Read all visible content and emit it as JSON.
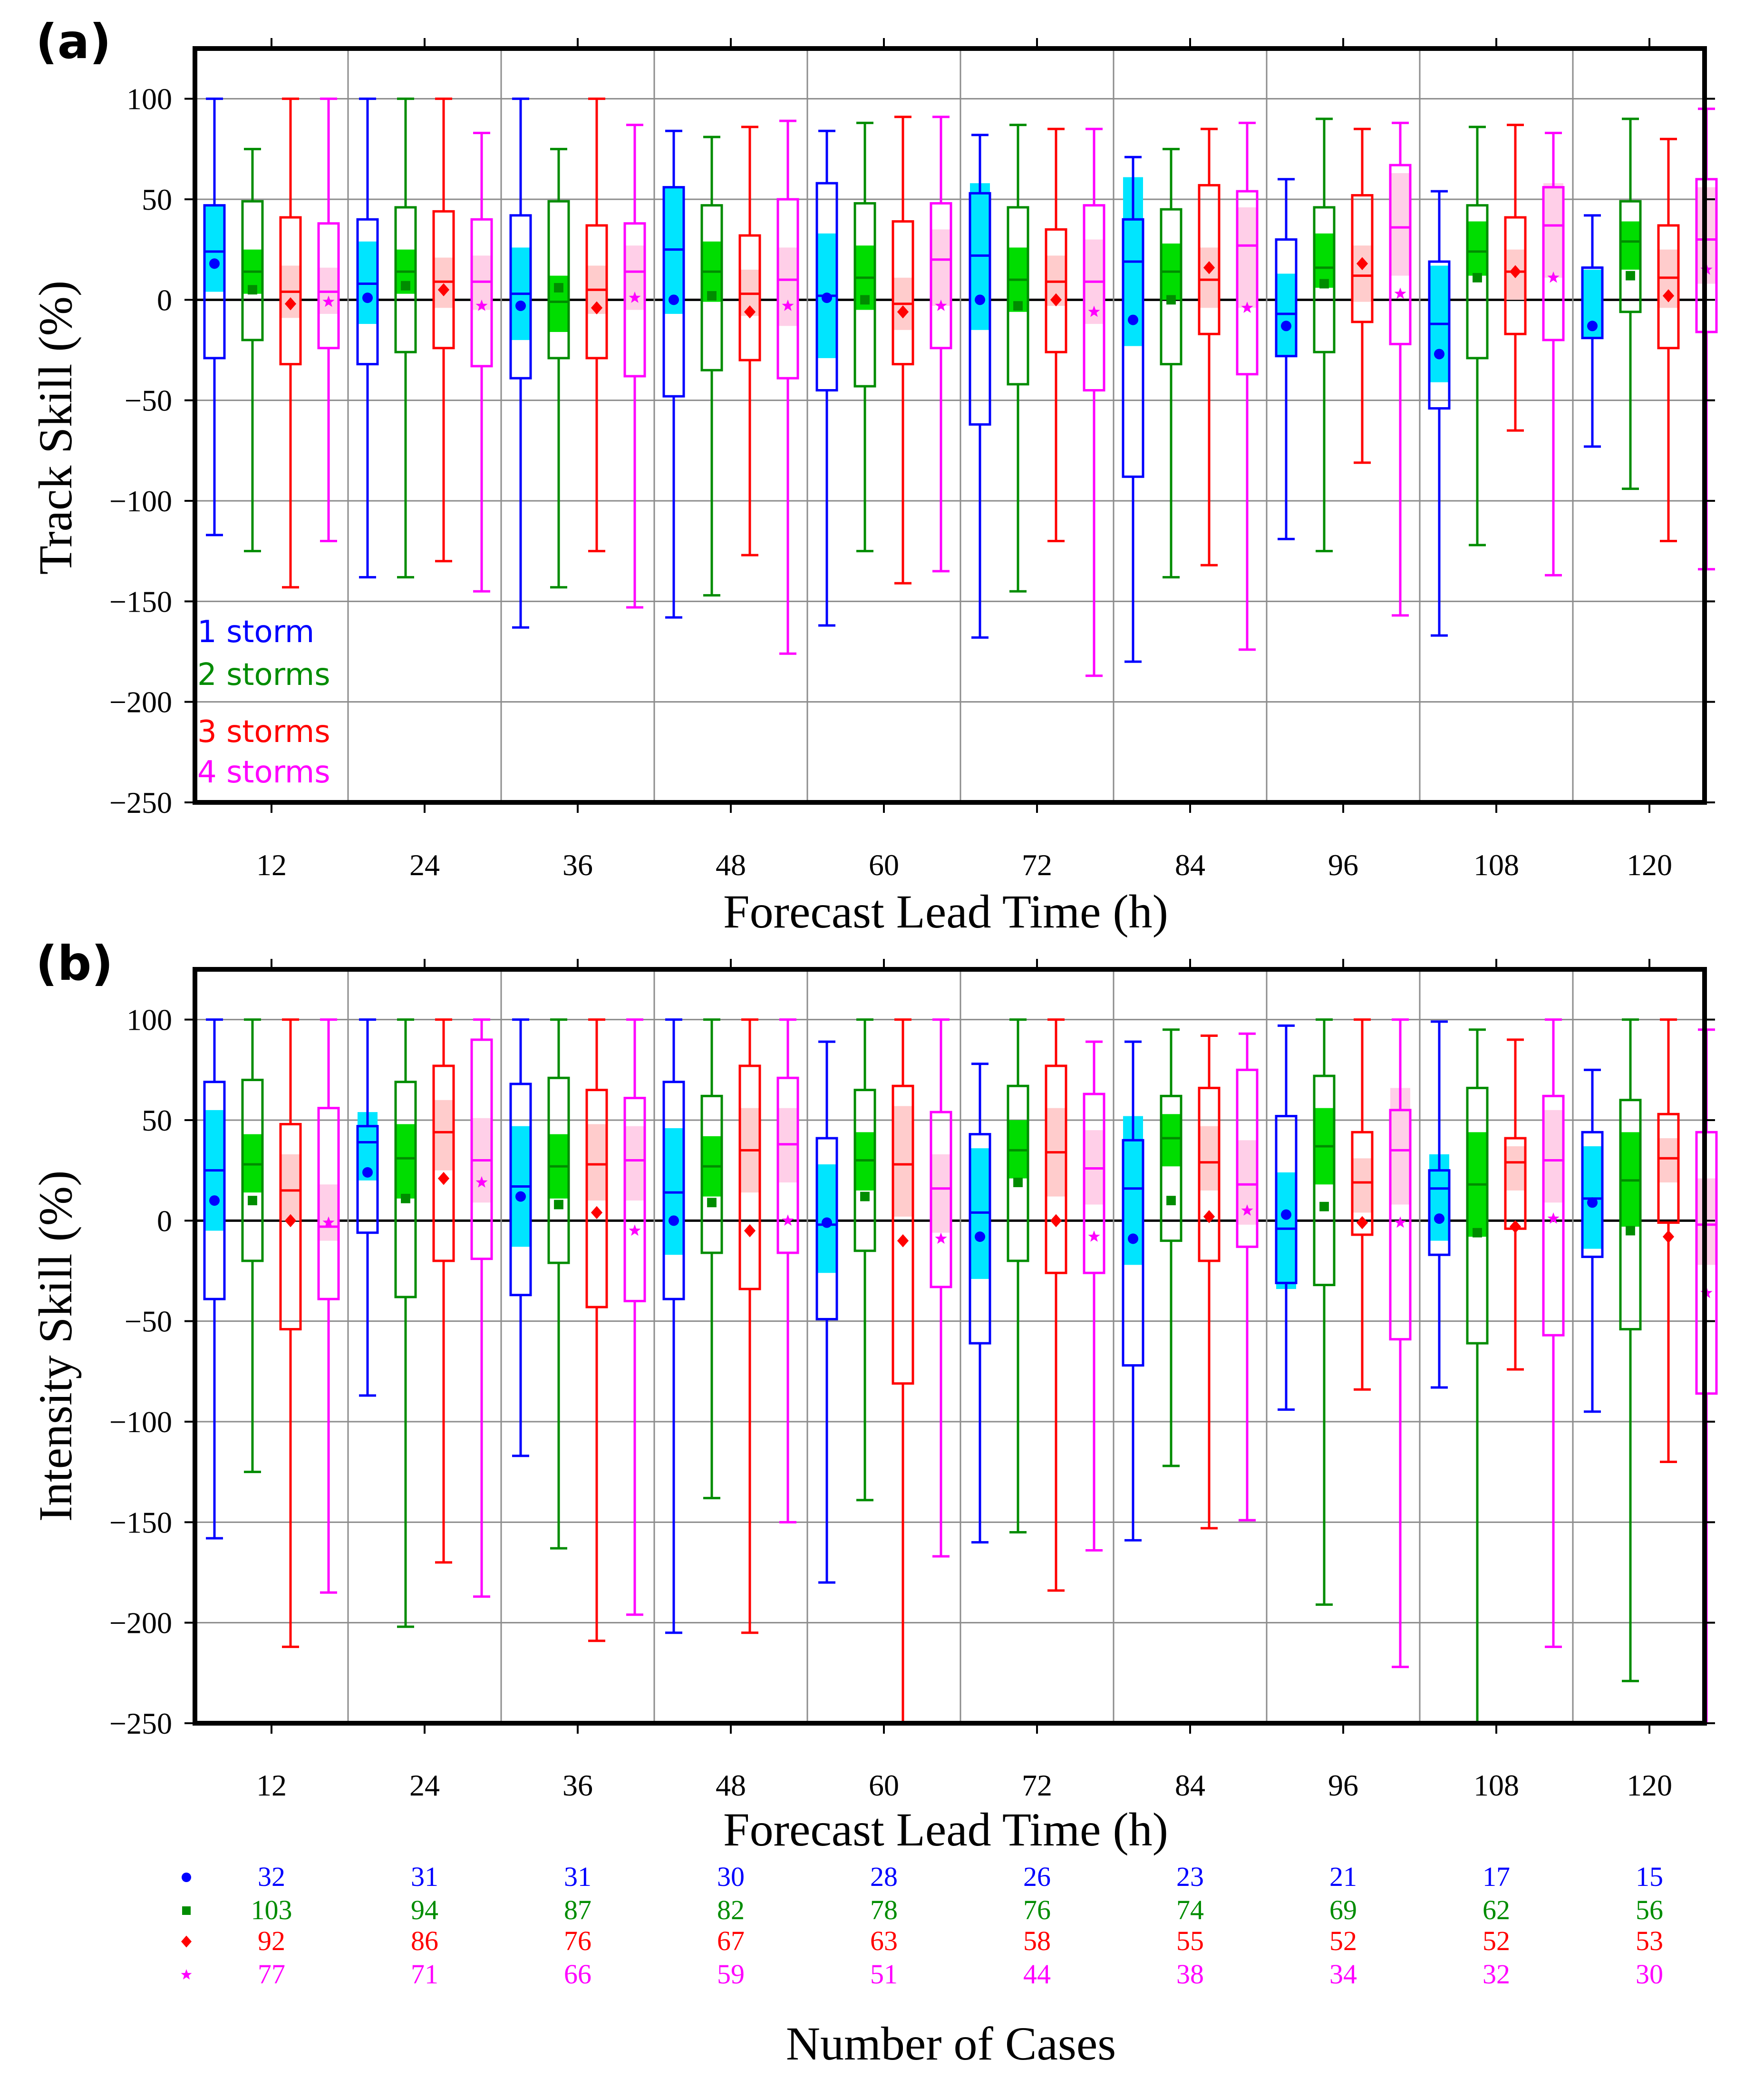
{
  "colors": {
    "1": "#0000ff",
    "2": "#008c00",
    "3": "#ff0000",
    "4": "#ff00ff"
  },
  "fill_colors": {
    "1": "#00e5ff",
    "2": "#00dd00",
    "3": "#ffcccc",
    "4": "#ffcfe8"
  },
  "chart_data": [
    {
      "type": "boxplot",
      "panel_label": "(a)",
      "title": "",
      "xlabel": "Forecast Lead Time (h)",
      "ylabel": "Track Skill (%)",
      "ylim": [
        -250,
        125
      ],
      "yticks": [
        100,
        50,
        0,
        -50,
        -100,
        -150,
        -200,
        -250
      ],
      "ytick_labels": [
        "100",
        "50",
        "0",
        "−50",
        "−100",
        "−150",
        "−200",
        "−250"
      ],
      "categories": [
        "12",
        "24",
        "36",
        "48",
        "60",
        "72",
        "84",
        "96",
        "108",
        "120"
      ],
      "grid": true,
      "legend": {
        "placement": "bottom-left",
        "entries": [
          "1 storm",
          "2 storms",
          "3 storms",
          "4 storms"
        ]
      },
      "series": [
        {
          "name": "1 storm",
          "marker": "circle",
          "max": [
            100,
            100,
            100,
            84,
            84,
            82,
            71,
            60,
            54,
            42
          ],
          "min": [
            -117,
            -138,
            -163,
            -158,
            -162,
            -168,
            -180,
            -119,
            -167,
            -73
          ],
          "q1": [
            -29,
            -32,
            -39,
            -48,
            -45,
            -62,
            -88,
            -28,
            -54,
            -19
          ],
          "q3": [
            47,
            40,
            42,
            56,
            58,
            53,
            40,
            30,
            19,
            16
          ],
          "median": [
            24,
            8,
            3,
            25,
            2,
            22,
            19,
            -7,
            -12,
            16
          ],
          "mean": [
            18,
            1,
            -3,
            0,
            1,
            0,
            -10,
            -13,
            -27,
            -13
          ],
          "ci": [
            [
              4,
              47
            ],
            [
              -12,
              29
            ],
            [
              -20,
              26
            ],
            [
              -7,
              56
            ],
            [
              -29,
              33
            ],
            [
              -15,
              58
            ],
            [
              -23,
              61
            ],
            [
              -28,
              13
            ],
            [
              -41,
              17
            ],
            [
              -19,
              15
            ]
          ]
        },
        {
          "name": "2 storms",
          "marker": "square",
          "max": [
            75,
            100,
            75,
            81,
            88,
            87,
            75,
            90,
            86,
            90
          ],
          "min": [
            -125,
            -138,
            -143,
            -147,
            -125,
            -145,
            -138,
            -125,
            -122,
            -94
          ],
          "q1": [
            -20,
            -26,
            -29,
            -35,
            -43,
            -42,
            -32,
            -26,
            -29,
            -6
          ],
          "q3": [
            49,
            46,
            49,
            47,
            48,
            46,
            45,
            46,
            47,
            49
          ],
          "median": [
            14,
            14,
            -1,
            14,
            11,
            10,
            14,
            16,
            24,
            29
          ],
          "mean": [
            5,
            7,
            6,
            2,
            0,
            -3,
            0,
            8,
            11,
            12
          ],
          "ci": [
            [
              3,
              25
            ],
            [
              3,
              25
            ],
            [
              -16,
              12
            ],
            [
              -1,
              29
            ],
            [
              -5,
              27
            ],
            [
              -6,
              26
            ],
            [
              0,
              28
            ],
            [
              6,
              33
            ],
            [
              12,
              39
            ],
            [
              15,
              39
            ]
          ]
        },
        {
          "name": "3 storms",
          "marker": "diamond",
          "max": [
            100,
            100,
            100,
            86,
            91,
            85,
            85,
            85,
            87,
            80
          ],
          "min": [
            -143,
            -130,
            -125,
            -127,
            -141,
            -120,
            -132,
            -81,
            -65,
            -120
          ],
          "q1": [
            -32,
            -24,
            -29,
            -30,
            -32,
            -26,
            -17,
            -11,
            -17,
            -24
          ],
          "q3": [
            41,
            44,
            37,
            32,
            39,
            35,
            57,
            52,
            41,
            37
          ],
          "median": [
            4,
            9,
            5,
            3,
            -2,
            9,
            10,
            12,
            14,
            11
          ],
          "mean": [
            -2,
            5,
            -4,
            -6,
            -6,
            0,
            16,
            18,
            14,
            2
          ],
          "ci": [
            [
              -9,
              17
            ],
            [
              -4,
              21
            ],
            [
              -7,
              17
            ],
            [
              -8,
              15
            ],
            [
              -15,
              11
            ],
            [
              -3,
              22
            ],
            [
              -4,
              26
            ],
            [
              -1,
              27
            ],
            [
              0,
              25
            ],
            [
              -4,
              25
            ]
          ]
        },
        {
          "name": "4 storms",
          "marker": "star",
          "max": [
            100,
            83,
            87,
            89,
            91,
            85,
            88,
            88,
            83,
            95
          ],
          "min": [
            -120,
            -145,
            -153,
            -176,
            -135,
            -187,
            -174,
            -157,
            -137,
            -134
          ],
          "q1": [
            -24,
            -33,
            -38,
            -39,
            -24,
            -45,
            -37,
            -22,
            -20,
            -16
          ],
          "q3": [
            38,
            40,
            38,
            50,
            48,
            47,
            54,
            67,
            56,
            60
          ],
          "median": [
            4,
            9,
            14,
            10,
            20,
            9,
            27,
            36,
            37,
            30
          ],
          "mean": [
            -1,
            -3,
            1,
            -3,
            -3,
            -6,
            -4,
            3,
            11,
            15
          ],
          "ci": [
            [
              -7,
              16
            ],
            [
              -5,
              22
            ],
            [
              -5,
              27
            ],
            [
              -13,
              26
            ],
            [
              -3,
              35
            ],
            [
              -12,
              30
            ],
            [
              -4,
              46
            ],
            [
              12,
              63
            ],
            [
              11,
              58
            ],
            [
              8,
              56
            ]
          ]
        }
      ]
    },
    {
      "type": "boxplot",
      "panel_label": "(b)",
      "title": "",
      "xlabel": "Forecast Lead Time (h)",
      "ylabel": "Intensity Skill (%)",
      "ylim": [
        -250,
        125
      ],
      "yticks": [
        100,
        50,
        0,
        -50,
        -100,
        -150,
        -200,
        -250
      ],
      "ytick_labels": [
        "100",
        "50",
        "0",
        "−50",
        "−100",
        "−150",
        "−200",
        "−250"
      ],
      "categories": [
        "12",
        "24",
        "36",
        "48",
        "60",
        "72",
        "84",
        "96",
        "108",
        "120"
      ],
      "grid": true,
      "series": [
        {
          "name": "1 storm",
          "marker": "circle",
          "max": [
            100,
            100,
            100,
            100,
            89,
            78,
            89,
            97,
            99,
            75
          ],
          "min": [
            -158,
            -87,
            -117,
            -205,
            -180,
            -160,
            -159,
            -94,
            -83,
            -95
          ],
          "q1": [
            -39,
            -6,
            -37,
            -39,
            -49,
            -61,
            -72,
            -31,
            -17,
            -18
          ],
          "q3": [
            69,
            47,
            68,
            69,
            41,
            43,
            40,
            52,
            25,
            44
          ],
          "median": [
            25,
            39,
            17,
            14,
            -2,
            4,
            16,
            -4,
            16,
            11
          ],
          "mean": [
            10,
            24,
            12,
            0,
            -1,
            -8,
            -9,
            3,
            1,
            9
          ],
          "ci": [
            [
              -5,
              55
            ],
            [
              20,
              54
            ],
            [
              -13,
              47
            ],
            [
              -17,
              46
            ],
            [
              -26,
              28
            ],
            [
              -29,
              36
            ],
            [
              -22,
              52
            ],
            [
              -34,
              24
            ],
            [
              -10,
              33
            ],
            [
              -14,
              37
            ]
          ]
        },
        {
          "name": "2 storms",
          "marker": "square",
          "max": [
            100,
            100,
            100,
            100,
            100,
            100,
            95,
            100,
            95,
            100
          ],
          "min": [
            -125,
            -202,
            -163,
            -138,
            -139,
            -155,
            -122,
            -191,
            -257,
            -229
          ],
          "q1": [
            -20,
            -38,
            -21,
            -16,
            -15,
            -20,
            -10,
            -32,
            -61,
            -54
          ],
          "q3": [
            70,
            69,
            71,
            62,
            65,
            67,
            62,
            72,
            66,
            60
          ],
          "median": [
            28,
            31,
            27,
            27,
            30,
            35,
            41,
            37,
            18,
            20
          ],
          "mean": [
            10,
            11,
            8,
            9,
            12,
            19,
            10,
            7,
            -6,
            -5
          ],
          "ci": [
            [
              14,
              43
            ],
            [
              11,
              48
            ],
            [
              11,
              43
            ],
            [
              12,
              42
            ],
            [
              15,
              44
            ],
            [
              21,
              50
            ],
            [
              27,
              53
            ],
            [
              18,
              56
            ],
            [
              -8,
              44
            ],
            [
              -3,
              44
            ]
          ]
        },
        {
          "name": "3 storms",
          "marker": "diamond",
          "max": [
            100,
            100,
            100,
            100,
            100,
            100,
            92,
            100,
            90,
            100
          ],
          "min": [
            -212,
            -170,
            -209,
            -205,
            -255,
            -184,
            -153,
            -84,
            -74,
            -120
          ],
          "q1": [
            -54,
            -20,
            -43,
            -34,
            -81,
            -26,
            -20,
            -7,
            -4,
            -1
          ],
          "q3": [
            48,
            77,
            65,
            77,
            67,
            77,
            66,
            44,
            41,
            53
          ],
          "median": [
            15,
            44,
            28,
            35,
            28,
            34,
            29,
            19,
            29,
            31
          ],
          "mean": [
            0,
            21,
            4,
            -5,
            -10,
            0,
            2,
            -1,
            -3,
            -8
          ],
          "ci": [
            [
              0,
              33
            ],
            [
              25,
              60
            ],
            [
              10,
              48
            ],
            [
              14,
              56
            ],
            [
              2,
              57
            ],
            [
              12,
              56
            ],
            [
              15,
              47
            ],
            [
              4,
              31
            ],
            [
              15,
              37
            ],
            [
              19,
              41
            ]
          ]
        },
        {
          "name": "4 storms",
          "marker": "star",
          "max": [
            100,
            100,
            100,
            100,
            100,
            89,
            93,
            100,
            100,
            95
          ],
          "min": [
            -185,
            -187,
            -196,
            -150,
            -167,
            -164,
            -149,
            -222,
            -212,
            -250
          ],
          "q1": [
            -39,
            -19,
            -40,
            -16,
            -33,
            -26,
            -13,
            -59,
            -57,
            -86
          ],
          "q3": [
            56,
            90,
            61,
            71,
            54,
            63,
            75,
            55,
            62,
            44
          ],
          "median": [
            -3,
            30,
            30,
            38,
            16,
            26,
            18,
            35,
            30,
            -2
          ],
          "mean": [
            -1,
            19,
            -5,
            0,
            -9,
            -8,
            5,
            -1,
            1,
            -36
          ],
          "ci": [
            [
              -10,
              18
            ],
            [
              9,
              51
            ],
            [
              10,
              47
            ],
            [
              19,
              56
            ],
            [
              -6,
              33
            ],
            [
              8,
              45
            ],
            [
              -2,
              40
            ],
            [
              8,
              66
            ],
            [
              9,
              55
            ],
            [
              -22,
              21
            ]
          ]
        }
      ]
    }
  ],
  "cases_table": {
    "title": "Number of Cases",
    "rows": [
      {
        "marker": "circle",
        "values": [
          "32",
          "31",
          "31",
          "30",
          "28",
          "26",
          "23",
          "21",
          "17",
          "15"
        ]
      },
      {
        "marker": "square",
        "values": [
          "103",
          "94",
          "87",
          "82",
          "78",
          "76",
          "74",
          "69",
          "62",
          "56"
        ]
      },
      {
        "marker": "diamond",
        "values": [
          "92",
          "86",
          "76",
          "67",
          "63",
          "58",
          "55",
          "52",
          "52",
          "53"
        ]
      },
      {
        "marker": "star",
        "values": [
          "77",
          "71",
          "66",
          "59",
          "51",
          "44",
          "38",
          "34",
          "32",
          "30"
        ]
      }
    ]
  }
}
